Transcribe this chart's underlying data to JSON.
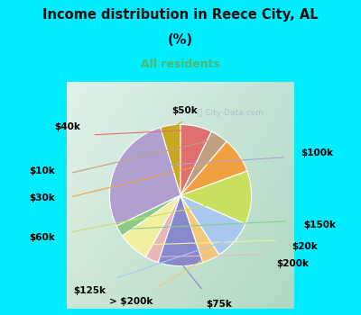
{
  "title_line1": "Income distribution in Reece City, AL",
  "title_line2": "(%)",
  "subtitle": "All residents",
  "title_color": "#111111",
  "subtitle_color": "#4db870",
  "bg_top_color": "#00eeff",
  "chart_bg_color_tl": "#e8f5ee",
  "chart_bg_color_br": "#c8e8d8",
  "watermark": "City-Data.com",
  "labels": [
    "$50k",
    "$100k",
    "$150k",
    "$20k",
    "$200k",
    "$75k",
    "> $200k",
    "$125k",
    "$60k",
    "$30k",
    "$10k",
    "$40k"
  ],
  "values": [
    4.5,
    27,
    2.5,
    7,
    3,
    10,
    4,
    9,
    12,
    8,
    4,
    7
  ],
  "colors": [
    "#c8a820",
    "#b0a0d0",
    "#88cc88",
    "#f0f0a0",
    "#e8b8b8",
    "#8888cc",
    "#f5c878",
    "#a8c8f0",
    "#c8e060",
    "#f0a040",
    "#c0a080",
    "#e07070"
  ],
  "label_fontsize": 7.5,
  "startangle": 90
}
